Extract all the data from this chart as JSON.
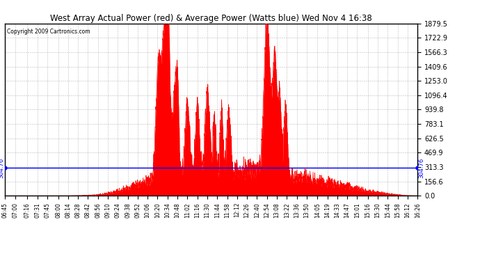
{
  "title": "West Array Actual Power (red) & Average Power (Watts blue) Wed Nov 4 16:38",
  "copyright": "Copyright 2009 Cartronics.com",
  "avg_power": 304.76,
  "ymax": 1879.5,
  "ymin": 0.0,
  "yticks": [
    0.0,
    156.6,
    313.3,
    469.9,
    626.5,
    783.1,
    939.8,
    1096.4,
    1253.0,
    1409.6,
    1566.3,
    1722.9,
    1879.5
  ],
  "bg_color": "#ffffff",
  "fill_color": "#ff0000",
  "line_color": "#0000ff",
  "grid_color": "#cccccc",
  "x_labels": [
    "06:45",
    "07:00",
    "07:16",
    "07:31",
    "07:45",
    "08:00",
    "08:14",
    "08:28",
    "08:42",
    "08:56",
    "09:10",
    "09:24",
    "09:38",
    "09:52",
    "10:06",
    "10:20",
    "10:34",
    "10:48",
    "11:02",
    "11:16",
    "11:30",
    "11:44",
    "11:58",
    "12:12",
    "12:26",
    "12:40",
    "12:54",
    "13:08",
    "13:22",
    "13:36",
    "13:50",
    "14:05",
    "14:19",
    "14:33",
    "14:47",
    "15:01",
    "15:16",
    "15:30",
    "15:44",
    "15:58",
    "16:12",
    "16:26"
  ]
}
